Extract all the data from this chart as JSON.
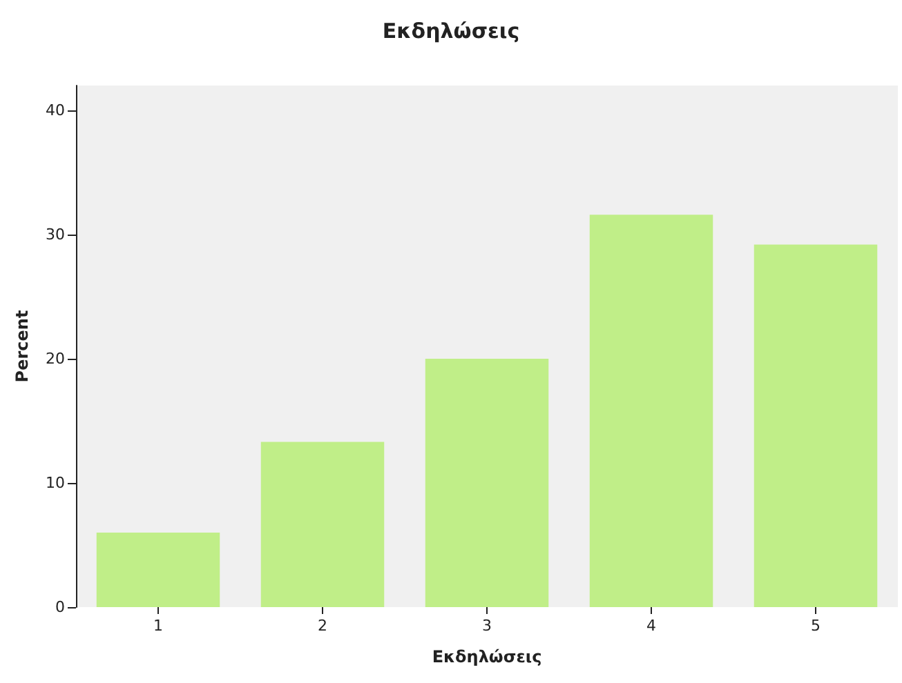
{
  "chart_data": {
    "type": "bar",
    "title": "Εκδηλώσεις",
    "xlabel": "Εκδηλώσεις",
    "ylabel": "Percent",
    "categories": [
      "1",
      "2",
      "3",
      "4",
      "5"
    ],
    "values": [
      6.0,
      13.3,
      20.0,
      31.6,
      29.2
    ],
    "color": "#c0ee88",
    "ylim": [
      0,
      42
    ],
    "yticks": [
      0,
      10,
      20,
      30,
      40
    ],
    "grid": false
  }
}
